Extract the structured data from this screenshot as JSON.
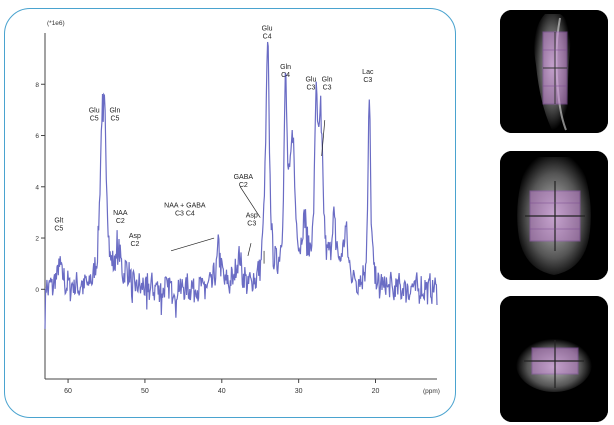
{
  "chart_data": {
    "type": "line",
    "title": "",
    "y_unit_label": "(*1e6)",
    "xlabel": "(ppm)",
    "xlim": [
      63,
      12
    ],
    "ylim": [
      -3.5,
      10
    ],
    "x_ticks": [
      {
        "value": 60,
        "label": "60"
      },
      {
        "value": 50,
        "label": "50"
      },
      {
        "value": 40,
        "label": "40"
      },
      {
        "value": 30,
        "label": "30"
      },
      {
        "value": 20,
        "label": "20"
      }
    ],
    "y_ticks": [
      {
        "value": 0,
        "label": "0"
      },
      {
        "value": 2,
        "label": "2"
      },
      {
        "value": 4,
        "label": "4"
      },
      {
        "value": 6,
        "label": "6"
      },
      {
        "value": 8,
        "label": "8"
      }
    ],
    "line_color": "#6a6cc4",
    "series": [
      {
        "name": "",
        "baseline_noise": 0.5,
        "peaks": [
          {
            "x": 61.1,
            "y": 1.1,
            "w": 0.35
          },
          {
            "x": 55.6,
            "y": 5.1,
            "w": 0.3
          },
          {
            "x": 55.2,
            "y": 5.0,
            "w": 0.3
          },
          {
            "x": 53.5,
            "y": 1.6,
            "w": 0.35
          },
          {
            "x": 52.3,
            "y": 0.6,
            "w": 0.35
          },
          {
            "x": 40.4,
            "y": 1.5,
            "w": 0.35
          },
          {
            "x": 37.8,
            "y": 1.2,
            "w": 0.4
          },
          {
            "x": 34.3,
            "y": 2.2,
            "w": 0.3
          },
          {
            "x": 34.0,
            "y": 8.1,
            "w": 0.25
          },
          {
            "x": 31.7,
            "y": 7.2,
            "w": 0.25
          },
          {
            "x": 30.8,
            "y": 5.3,
            "w": 0.4
          },
          {
            "x": 29.2,
            "y": 2.2,
            "w": 0.4
          },
          {
            "x": 27.7,
            "y": 6.6,
            "w": 0.25
          },
          {
            "x": 27.1,
            "y": 5.8,
            "w": 0.3
          },
          {
            "x": 25.4,
            "y": 2.4,
            "w": 0.4
          },
          {
            "x": 23.9,
            "y": 2.0,
            "w": 0.4
          },
          {
            "x": 20.8,
            "y": 7.3,
            "w": 0.2
          }
        ]
      }
    ],
    "annotations": [
      {
        "lines": [
          "Glt",
          "C5"
        ],
        "x": 61.2,
        "y": 2.6
      },
      {
        "lines": [
          "Glu",
          "C5"
        ],
        "x": 56.6,
        "y": 6.9
      },
      {
        "lines": [
          "Gln",
          "C5"
        ],
        "x": 53.9,
        "y": 6.9
      },
      {
        "lines": [
          "NAA",
          "C2"
        ],
        "x": 53.2,
        "y": 2.9
      },
      {
        "lines": [
          "Asp",
          "C2"
        ],
        "x": 51.3,
        "y": 2.0
      },
      {
        "lines": [
          "NAA + GABA",
          "C3        C4"
        ],
        "x": 44.8,
        "y": 3.2
      },
      {
        "lines": [
          "Asp",
          "C3"
        ],
        "x": 36.1,
        "y": 2.8
      },
      {
        "lines": [
          "GABA",
          "C2"
        ],
        "x": 37.2,
        "y": 4.3
      },
      {
        "lines": [
          "Glu",
          "C4"
        ],
        "x": 34.1,
        "y": 10.1
      },
      {
        "lines": [
          "Gln",
          "C4"
        ],
        "x": 31.7,
        "y": 8.6
      },
      {
        "lines": [
          "Glu",
          "C3"
        ],
        "x": 28.4,
        "y": 8.1
      },
      {
        "lines": [
          "Gln",
          "C3"
        ],
        "x": 26.3,
        "y": 8.1
      },
      {
        "lines": [
          "Lac",
          "C3"
        ],
        "x": 21.0,
        "y": 8.4
      }
    ]
  },
  "images": [
    {
      "name": "sagittal-mri",
      "view": "sagittal",
      "overlay_color": "#c98ad8"
    },
    {
      "name": "coronal-mri",
      "view": "coronal",
      "overlay_color": "#c98ad8"
    },
    {
      "name": "axial-mri",
      "view": "axial",
      "overlay_color": "#c98ad8"
    }
  ]
}
